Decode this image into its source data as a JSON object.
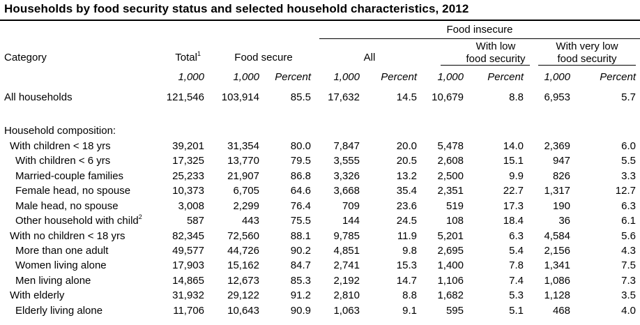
{
  "title": "Households by food security status and selected household characteristics, 2012",
  "header": {
    "food_insecure": "Food insecure",
    "category": "Category",
    "total": "Total",
    "total_sup": "1",
    "food_secure": "Food secure",
    "all": "All",
    "low_line1": "With low",
    "low_line2": "food security",
    "vlow_line1": "With very low",
    "vlow_line2": "food security",
    "units": [
      "1,000",
      "1,000",
      "Percent",
      "1,000",
      "Percent",
      "1,000",
      "Percent",
      "1,000",
      "Percent"
    ]
  },
  "rows": [
    {
      "label": "All households",
      "sup": "",
      "values": [
        "121,546",
        "103,914",
        "85.5",
        "17,632",
        "14.5",
        "10,679",
        "8.8",
        "6,953",
        "5.7"
      ]
    },
    {
      "label": "Household composition:",
      "sup": "",
      "values": [
        "",
        "",
        "",
        "",
        "",
        "",
        "",
        "",
        ""
      ]
    },
    {
      "label": "With children < 18 yrs",
      "sup": "",
      "values": [
        "39,201",
        "31,354",
        "80.0",
        "7,847",
        "20.0",
        "5,478",
        "14.0",
        "2,369",
        "6.0"
      ]
    },
    {
      "label": "With children < 6 yrs",
      "sup": "",
      "values": [
        "17,325",
        "13,770",
        "79.5",
        "3,555",
        "20.5",
        "2,608",
        "15.1",
        "947",
        "5.5"
      ]
    },
    {
      "label": "Married-couple families",
      "sup": "",
      "values": [
        "25,233",
        "21,907",
        "86.8",
        "3,326",
        "13.2",
        "2,500",
        "9.9",
        "826",
        "3.3"
      ]
    },
    {
      "label": "Female head, no spouse",
      "sup": "",
      "values": [
        "10,373",
        "6,705",
        "64.6",
        "3,668",
        "35.4",
        "2,351",
        "22.7",
        "1,317",
        "12.7"
      ]
    },
    {
      "label": "Male head, no spouse",
      "sup": "",
      "values": [
        "3,008",
        "2,299",
        "76.4",
        "709",
        "23.6",
        "519",
        "17.3",
        "190",
        "6.3"
      ]
    },
    {
      "label": "Other household with child",
      "sup": "2",
      "values": [
        "587",
        "443",
        "75.5",
        "144",
        "24.5",
        "108",
        "18.4",
        "36",
        "6.1"
      ]
    },
    {
      "label": "With no children < 18 yrs",
      "sup": "",
      "values": [
        "82,345",
        "72,560",
        "88.1",
        "9,785",
        "11.9",
        "5,201",
        "6.3",
        "4,584",
        "5.6"
      ]
    },
    {
      "label": "More than one adult",
      "sup": "",
      "values": [
        "49,577",
        "44,726",
        "90.2",
        "4,851",
        "9.8",
        "2,695",
        "5.4",
        "2,156",
        "4.3"
      ]
    },
    {
      "label": "Women living alone",
      "sup": "",
      "values": [
        "17,903",
        "15,162",
        "84.7",
        "2,741",
        "15.3",
        "1,400",
        "7.8",
        "1,341",
        "7.5"
      ]
    },
    {
      "label": "Men living alone",
      "sup": "",
      "values": [
        "14,865",
        "12,673",
        "85.3",
        "2,192",
        "14.7",
        "1,106",
        "7.4",
        "1,086",
        "7.3"
      ]
    },
    {
      "label": "With elderly",
      "sup": "",
      "values": [
        "31,932",
        "29,122",
        "91.2",
        "2,810",
        "8.8",
        "1,682",
        "5.3",
        "1,128",
        "3.5"
      ]
    },
    {
      "label": "Elderly living alone",
      "sup": "",
      "values": [
        "11,706",
        "10,643",
        "90.9",
        "1,063",
        "9.1",
        "595",
        "5.1",
        "468",
        "4.0"
      ]
    }
  ]
}
